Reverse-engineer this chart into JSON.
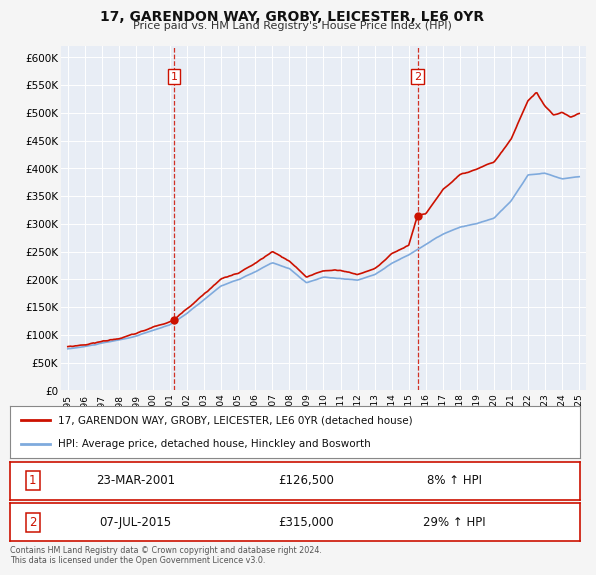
{
  "title": "17, GARENDON WAY, GROBY, LEICESTER, LE6 0YR",
  "subtitle": "Price paid vs. HM Land Registry's House Price Index (HPI)",
  "background_color": "#f5f5f5",
  "plot_bg_color": "#e8edf5",
  "grid_color": "#ffffff",
  "hpi_color": "#7faadd",
  "price_color": "#cc1100",
  "sale1_date": "23-MAR-2001",
  "sale1_price": 126500,
  "sale1_label": "8% ↑ HPI",
  "sale2_date": "07-JUL-2015",
  "sale2_price": 315000,
  "sale2_label": "29% ↑ HPI",
  "vline1_x": 2001.23,
  "vline2_x": 2015.52,
  "ylim": [
    0,
    620000
  ],
  "xlim": [
    1994.6,
    2025.4
  ],
  "yticks": [
    0,
    50000,
    100000,
    150000,
    200000,
    250000,
    300000,
    350000,
    400000,
    450000,
    500000,
    550000,
    600000
  ],
  "ytick_labels": [
    "£0",
    "£50K",
    "£100K",
    "£150K",
    "£200K",
    "£250K",
    "£300K",
    "£350K",
    "£400K",
    "£450K",
    "£500K",
    "£550K",
    "£600K"
  ],
  "xticks": [
    1995,
    1996,
    1997,
    1998,
    1999,
    2000,
    2001,
    2002,
    2003,
    2004,
    2005,
    2006,
    2007,
    2008,
    2009,
    2010,
    2011,
    2012,
    2013,
    2014,
    2015,
    2016,
    2017,
    2018,
    2019,
    2020,
    2021,
    2022,
    2023,
    2024,
    2025
  ],
  "legend_label_price": "17, GARENDON WAY, GROBY, LEICESTER, LE6 0YR (detached house)",
  "legend_label_hpi": "HPI: Average price, detached house, Hinckley and Bosworth",
  "footer_text": "Contains HM Land Registry data © Crown copyright and database right 2024.\nThis data is licensed under the Open Government Licence v3.0."
}
